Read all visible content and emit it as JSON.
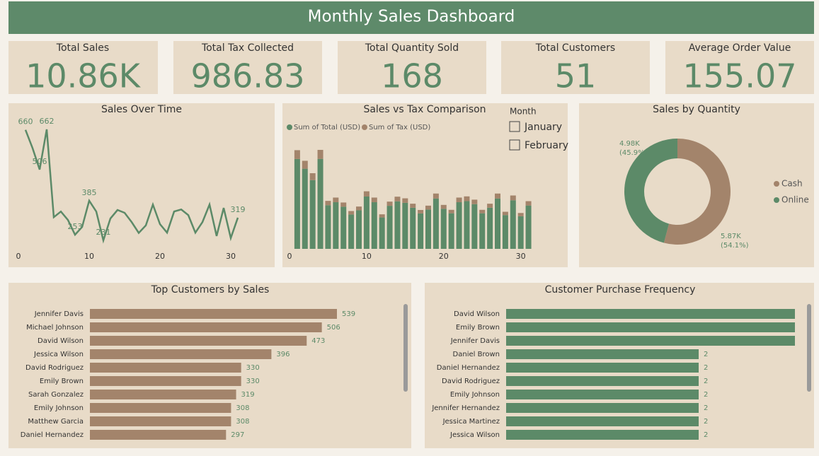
{
  "title": "Monthly Sales Dashboard",
  "kpis": [
    {
      "label": "Total Sales",
      "value": "10.86K"
    },
    {
      "label": "Total Tax Collected",
      "value": "986.83"
    },
    {
      "label": "Total Quantity Sold",
      "value": "168"
    },
    {
      "label": "Total Customers",
      "value": "51"
    },
    {
      "label": "Average Order Value",
      "value": "155.07"
    }
  ],
  "slicer": {
    "title": "Month",
    "options": [
      "January",
      "February"
    ]
  },
  "chart_data": [
    {
      "type": "line",
      "title": "Sales Over Time",
      "x": [
        1,
        2,
        3,
        4,
        5,
        6,
        7,
        8,
        9,
        10,
        11,
        12,
        13,
        14,
        15,
        16,
        17,
        18,
        19,
        20,
        21,
        22,
        23,
        24,
        25,
        26,
        27,
        28,
        29,
        30,
        31
      ],
      "values": [
        660,
        589,
        506,
        662,
        321,
        343,
        310,
        253,
        283,
        385,
        343,
        231,
        316,
        349,
        338,
        302,
        260,
        289,
        370,
        294,
        261,
        343,
        351,
        329,
        261,
        302,
        370,
        248,
        357,
        240,
        319
      ],
      "value_labels": [
        "660",
        null,
        "506",
        "662",
        null,
        null,
        null,
        "253",
        null,
        "385",
        null,
        "231",
        null,
        null,
        null,
        null,
        null,
        null,
        null,
        null,
        null,
        null,
        null,
        null,
        null,
        null,
        null,
        null,
        null,
        null,
        "319"
      ],
      "color": "#5c8a68",
      "xlim": [
        0,
        31
      ],
      "xticks": [
        0,
        10,
        20,
        30
      ]
    },
    {
      "type": "bar",
      "title": "Sales vs Tax Comparison",
      "stacked": true,
      "x": [
        1,
        2,
        3,
        4,
        5,
        6,
        7,
        8,
        9,
        10,
        11,
        12,
        13,
        14,
        15,
        16,
        17,
        18,
        19,
        20,
        21,
        22,
        23,
        24,
        25,
        26,
        27,
        28,
        29,
        30,
        31
      ],
      "series": [
        {
          "name": "Sum of Total (USD)",
          "color": "#5c8a68",
          "values": [
            601,
            536,
            460,
            602,
            292,
            312,
            282,
            230,
            258,
            350,
            312,
            210,
            288,
            318,
            308,
            275,
            237,
            263,
            337,
            268,
            238,
            312,
            319,
            299,
            238,
            275,
            337,
            226,
            325,
            218,
            290
          ]
        },
        {
          "name": "Sum of Tax (USD)",
          "color": "#a3846b",
          "values": [
            59,
            53,
            46,
            60,
            29,
            31,
            28,
            23,
            25,
            35,
            31,
            21,
            28,
            31,
            30,
            27,
            23,
            26,
            33,
            26,
            23,
            31,
            32,
            30,
            23,
            27,
            33,
            22,
            32,
            22,
            29
          ]
        }
      ],
      "xlim": [
        0,
        31.5
      ],
      "xticks": [
        0,
        10,
        20,
        30
      ]
    },
    {
      "type": "pie",
      "title": "Sales by Quantity",
      "donut": true,
      "categories": [
        "Cash",
        "Online"
      ],
      "values": [
        54.1,
        45.9
      ],
      "value_labels": [
        "(54.1%)",
        "(45.9%)"
      ],
      "amounts": [
        "5.87K",
        "4.98K"
      ],
      "colors": [
        "#a3846b",
        "#5c8a68"
      ]
    },
    {
      "type": "hbar",
      "title": "Top Customers by Sales",
      "categories": [
        "Jennifer Davis",
        "Michael Johnson",
        "David Wilson",
        "Jessica Wilson",
        "David Rodriguez",
        "Emily Brown",
        "Sarah Gonzalez",
        "Emily Johnson",
        "Matthew Garcia",
        "Daniel Hernandez"
      ],
      "values": [
        539,
        506,
        473,
        396,
        330,
        330,
        319,
        308,
        308,
        297
      ],
      "value_labels": [
        "539",
        "506",
        "473",
        "396",
        "330",
        "330",
        "319",
        "308",
        "308",
        "297"
      ],
      "color": "#a3846b"
    },
    {
      "type": "hbar",
      "title": "Customer Purchase Frequency",
      "categories": [
        "David Wilson",
        "Emily Brown",
        "Jennifer Davis",
        "Daniel Brown",
        "Daniel Hernandez",
        "David Rodriguez",
        "Emily Johnson",
        "Jennifer Hernandez",
        "Jessica Martinez",
        "Jessica Wilson"
      ],
      "values": [
        3,
        3,
        3,
        2,
        2,
        2,
        2,
        2,
        2,
        2
      ],
      "value_labels": [
        null,
        null,
        null,
        "2",
        "2",
        "2",
        "2",
        "2",
        "2",
        "2"
      ],
      "color": "#5c8a68"
    }
  ]
}
